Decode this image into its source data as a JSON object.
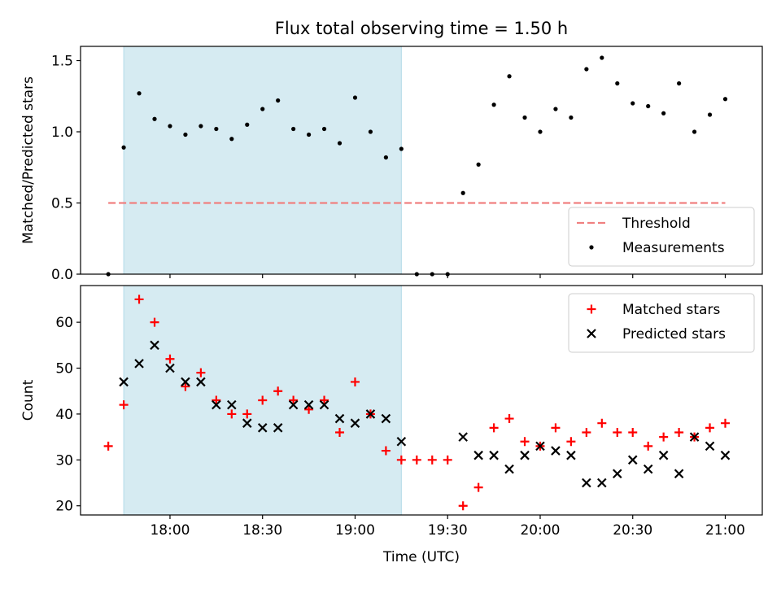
{
  "figure": {
    "title": "Flux total observing time = 1.50 h"
  },
  "chart_data": [
    {
      "type": "scatter",
      "title": "Flux total observing time = 1.50 h",
      "xlabel": "",
      "ylabel": "Matched/Predicted stars",
      "xlim": [
        "17:31",
        "21:12"
      ],
      "ylim": [
        0,
        1.6
      ],
      "yticks": [
        0,
        0.5,
        1.0,
        1.5
      ],
      "ytick_labels": [
        "0.0",
        "0.5",
        "1.0",
        "1.5"
      ],
      "xticks": [
        "18:00",
        "18:30",
        "19:00",
        "19:30",
        "20:00",
        "20:30",
        "21:00"
      ],
      "shaded_interval": [
        "17:45",
        "19:15"
      ],
      "grid": false,
      "legend_position": "lower-right",
      "threshold": {
        "name": "Threshold",
        "value": 0.5,
        "x_range": [
          "17:40",
          "21:00"
        ],
        "color": "#f08080"
      },
      "series": [
        {
          "name": "Measurements",
          "color": "#000000",
          "x": [
            "17:40",
            "17:45",
            "17:50",
            "17:55",
            "18:00",
            "18:05",
            "18:10",
            "18:15",
            "18:20",
            "18:25",
            "18:30",
            "18:35",
            "18:40",
            "18:45",
            "18:50",
            "18:55",
            "19:00",
            "19:05",
            "19:10",
            "19:15",
            "19:20",
            "19:25",
            "19:30",
            "19:35",
            "19:40",
            "19:45",
            "19:50",
            "19:55",
            "20:00",
            "20:05",
            "20:10",
            "20:15",
            "20:20",
            "20:25",
            "20:30",
            "20:35",
            "20:40",
            "20:45",
            "20:50",
            "20:55",
            "21:00"
          ],
          "y": [
            0.0,
            0.89,
            1.27,
            1.09,
            1.04,
            0.98,
            1.04,
            1.02,
            0.95,
            1.05,
            1.16,
            1.22,
            1.02,
            0.98,
            1.02,
            0.92,
            1.24,
            1.0,
            0.82,
            0.88,
            0.0,
            0.0,
            0.0,
            0.57,
            0.77,
            1.19,
            1.39,
            1.1,
            1.0,
            1.16,
            1.1,
            1.44,
            1.52,
            1.34,
            1.2,
            1.18,
            1.13,
            1.34,
            1.0,
            1.12,
            1.23
          ]
        }
      ]
    },
    {
      "type": "scatter",
      "title": "",
      "xlabel": "Time (UTC)",
      "ylabel": "Count",
      "xlim": [
        "17:31",
        "21:12"
      ],
      "ylim": [
        18,
        68
      ],
      "yticks": [
        20,
        30,
        40,
        50,
        60
      ],
      "ytick_labels": [
        "20",
        "30",
        "40",
        "50",
        "60"
      ],
      "xticks": [
        "18:00",
        "18:30",
        "19:00",
        "19:30",
        "20:00",
        "20:30",
        "21:00"
      ],
      "shaded_interval": [
        "17:45",
        "19:15"
      ],
      "grid": false,
      "legend_position": "top-right",
      "series": [
        {
          "name": "Matched stars",
          "marker": "+",
          "color": "#ff0000",
          "x": [
            "17:40",
            "17:45",
            "17:50",
            "17:55",
            "18:00",
            "18:05",
            "18:10",
            "18:15",
            "18:20",
            "18:25",
            "18:30",
            "18:35",
            "18:40",
            "18:45",
            "18:50",
            "18:55",
            "19:00",
            "19:05",
            "19:10",
            "19:15",
            "19:20",
            "19:25",
            "19:30",
            "19:35",
            "19:40",
            "19:45",
            "19:50",
            "19:55",
            "20:00",
            "20:05",
            "20:10",
            "20:15",
            "20:20",
            "20:25",
            "20:30",
            "20:35",
            "20:40",
            "20:45",
            "20:50",
            "20:55",
            "21:00"
          ],
          "y": [
            33,
            42,
            65,
            60,
            52,
            46,
            49,
            43,
            40,
            40,
            43,
            45,
            43,
            41,
            43,
            36,
            47,
            40,
            32,
            30,
            30,
            30,
            30,
            20,
            24,
            37,
            39,
            34,
            33,
            37,
            34,
            36,
            38,
            36,
            36,
            33,
            35,
            36,
            35,
            37,
            38
          ]
        },
        {
          "name": "Predicted stars",
          "marker": "x",
          "color": "#000000",
          "x": [
            "17:45",
            "17:50",
            "17:55",
            "18:00",
            "18:05",
            "18:10",
            "18:15",
            "18:20",
            "18:25",
            "18:30",
            "18:35",
            "18:40",
            "18:45",
            "18:50",
            "18:55",
            "19:00",
            "19:05",
            "19:10",
            "19:15",
            "19:35",
            "19:40",
            "19:45",
            "19:50",
            "19:55",
            "20:00",
            "20:05",
            "20:10",
            "20:15",
            "20:20",
            "20:25",
            "20:30",
            "20:35",
            "20:40",
            "20:45",
            "20:50",
            "20:55",
            "21:00"
          ],
          "y": [
            47,
            51,
            55,
            50,
            47,
            47,
            42,
            42,
            38,
            37,
            37,
            42,
            42,
            42,
            39,
            38,
            40,
            39,
            34,
            35,
            31,
            31,
            28,
            31,
            33,
            32,
            31,
            25,
            25,
            27,
            30,
            28,
            31,
            27,
            35,
            33,
            31
          ]
        }
      ]
    }
  ]
}
